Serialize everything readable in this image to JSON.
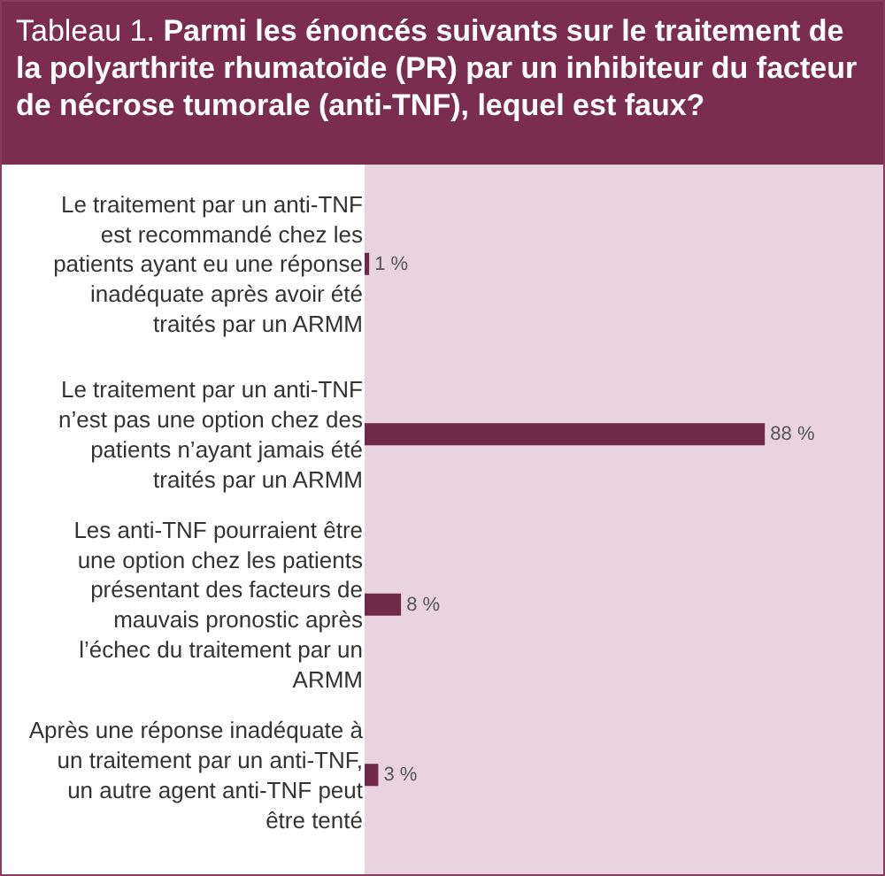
{
  "chart_data": {
    "type": "bar",
    "orientation": "horizontal",
    "title": "Tableau 1. Parmi les énoncés suivants sur le traitement de la polyarthrite rhumatoïde (PR) par un inhibiteur du facteur de nécrose tumorale (anti-TNF), lequel est faux?",
    "categories": [
      "Le traitement par un anti-TNF est recommandé chez les patients ayant eu une réponse inadéquate après avoir été traités par un ARMM",
      "Le traitement par un anti-TNF n’est pas une option chez des patients n’ayant jamais été traités par un ARMM",
      "Les anti-TNF pourraient être une option chez les patients présentant des facteurs de mauvais pronostic après l’échec du traitement par un ARMM",
      "Après une réponse inadéquate à un traitement par un anti-TNF, un autre agent anti-TNF peut être tenté"
    ],
    "values": [
      1,
      88,
      8,
      3
    ],
    "value_labels": [
      "1 %",
      "88 %",
      "8 %",
      "3 %"
    ],
    "color": "#6e2a47"
  }
}
